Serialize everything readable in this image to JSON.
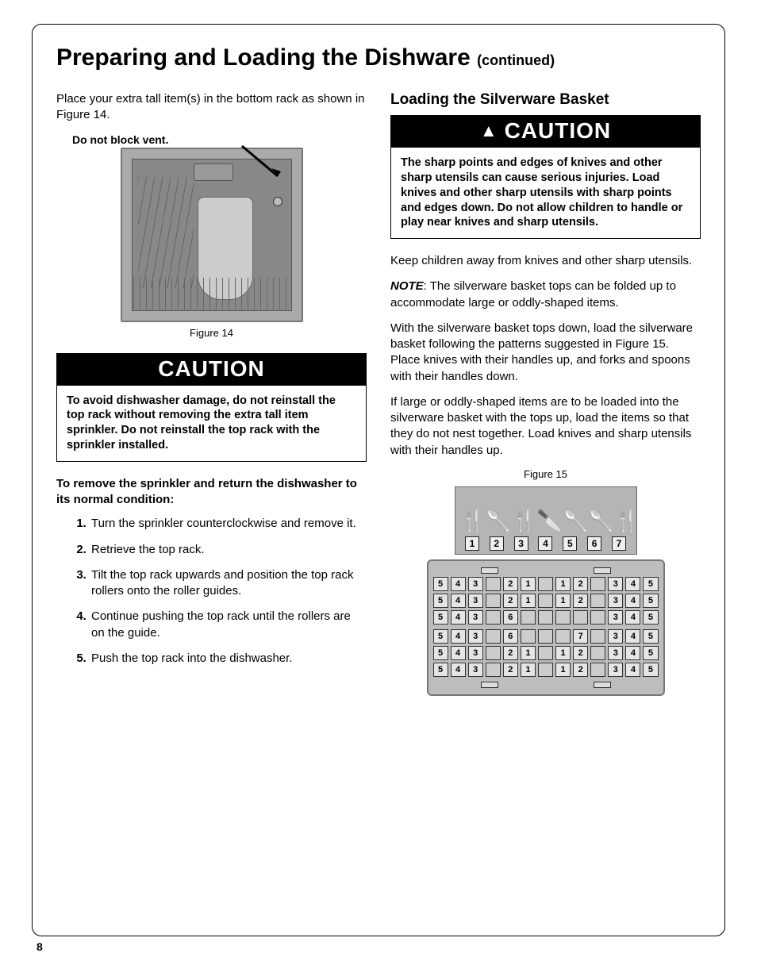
{
  "page_number": "8",
  "title_main": "Preparing and Loading the Dishware",
  "title_cont": "(continued)",
  "left": {
    "intro": "Place your extra tall item(s) in the bottom rack as shown in Figure 14.",
    "vent_label": "Do not block vent.",
    "fig14_caption": "Figure 14",
    "caution_word": "CAUTION",
    "caution_text": "To avoid dishwasher damage, do not reinstall the top rack without removing the extra tall item sprinkler. Do not reinstall the top rack with the sprinkler installed.",
    "remove_heading": "To remove the sprinkler and return the dishwasher to its normal condition:",
    "steps": [
      "Turn the sprinkler counterclockwise and remove it.",
      "Retrieve the top rack.",
      "Tilt the top rack upwards and position the top rack rollers onto the roller guides.",
      "Continue pushing the top rack until the rollers are on the guide.",
      "Push the top rack into the dishwasher."
    ]
  },
  "right": {
    "heading": "Loading the Silverware Basket",
    "caution_word": "CAUTION",
    "caution_text": "The sharp points and edges of knives and other sharp utensils can cause serious injuries.  Load knives and other sharp utensils with sharp points and edges down. Do not allow children to handle or play near knives and sharp utensils.",
    "p1": "Keep children away from knives and other sharp utensils.",
    "note_label": "NOTE",
    "p2": ": The silverware basket tops can be folded up to accommodate large or oddly-shaped items.",
    "p3": "With the silverware basket tops down, load the silverware basket following the patterns suggested in Figure 15. Place knives with their handles up, and forks and spoons with their handles down.",
    "p4": "If large or oddly-shaped items are to be loaded into the silverware basket with the tops up, load the items so that they do not nest together. Load knives and sharp utensils with their handles up.",
    "fig15_caption": "Figure 15",
    "utensil_glyphs": [
      "🍴",
      "🥄",
      "🍴",
      "🔪",
      "🥄",
      "🥄",
      "🍴"
    ],
    "key_numbers": [
      "1",
      "2",
      "3",
      "4",
      "5",
      "6",
      "7"
    ],
    "basket": {
      "group1": [
        [
          "5",
          "4",
          "3",
          "",
          "2",
          "1",
          "",
          "1",
          "2",
          "",
          "3",
          "4",
          "5"
        ],
        [
          "5",
          "4",
          "3",
          "",
          "2",
          "1",
          "",
          "1",
          "2",
          "",
          "3",
          "4",
          "5"
        ],
        [
          "5",
          "4",
          "3",
          "",
          "6",
          "",
          "",
          "",
          "",
          "",
          "3",
          "4",
          "5"
        ]
      ],
      "group2": [
        [
          "5",
          "4",
          "3",
          "",
          "6",
          "",
          "",
          "",
          "7",
          "",
          "3",
          "4",
          "5"
        ],
        [
          "5",
          "4",
          "3",
          "",
          "2",
          "1",
          "",
          "1",
          "2",
          "",
          "3",
          "4",
          "5"
        ],
        [
          "5",
          "4",
          "3",
          "",
          "2",
          "1",
          "",
          "1",
          "2",
          "",
          "3",
          "4",
          "5"
        ]
      ]
    }
  },
  "colors": {
    "text": "#000000",
    "banner_bg": "#000000",
    "banner_fg": "#ffffff",
    "fig_bg": "#aaaaaa",
    "basket_bg": "#bdbdbd",
    "cell_bg": "#e5e5e5"
  }
}
